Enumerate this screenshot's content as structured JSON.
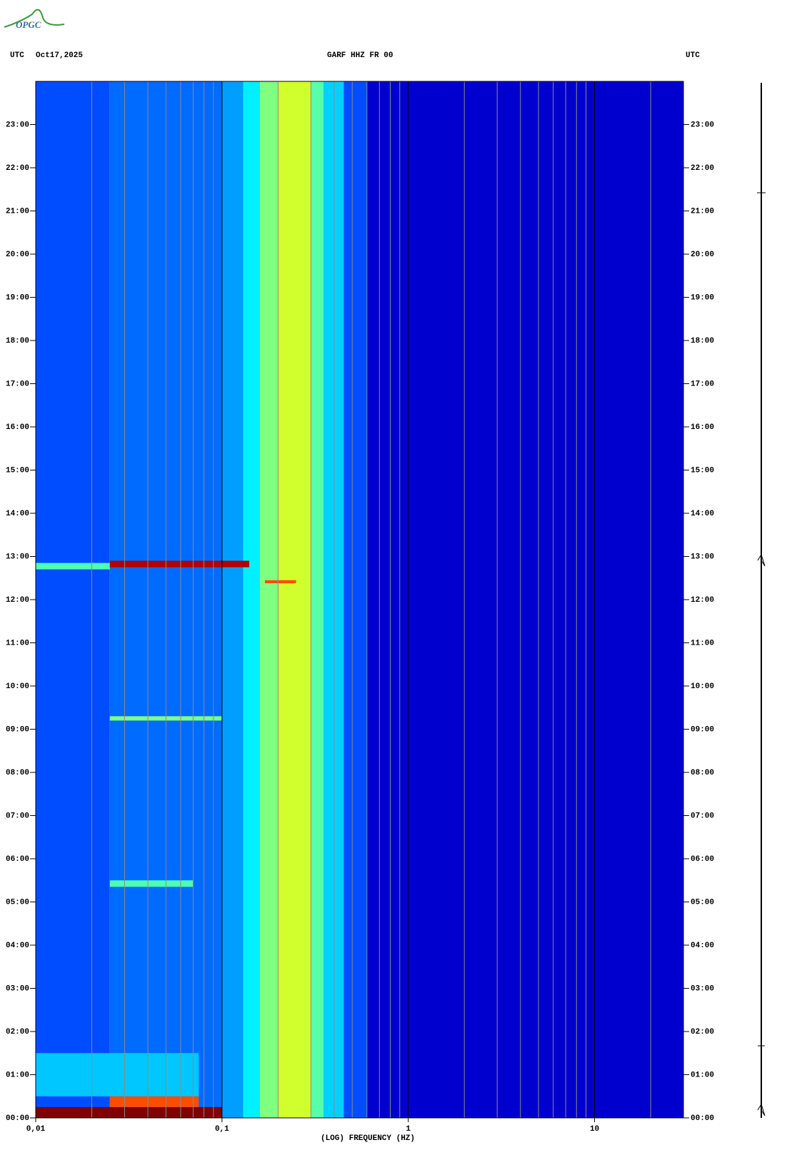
{
  "logo": "OPGC",
  "chart_data": {
    "type": "spectrogram",
    "header_left": "UTC",
    "date": "Oct17,2025",
    "title": "GARF HHZ FR 00",
    "header_right": "UTC",
    "xlabel": "(LOG) FREQUENCY (HZ)",
    "xscale": "log",
    "xlim": [
      0.01,
      30
    ],
    "ylim": [
      0,
      24
    ],
    "xticks": [
      {
        "value": 0.01,
        "label": "0,01"
      },
      {
        "value": 0.1,
        "label": "0,1"
      },
      {
        "value": 1,
        "label": "1"
      },
      {
        "value": 10,
        "label": "10"
      }
    ],
    "x_minor_grid": [
      0.02,
      0.03,
      0.04,
      0.05,
      0.06,
      0.07,
      0.08,
      0.09,
      0.2,
      0.3,
      0.4,
      0.5,
      0.6,
      0.7,
      0.8,
      0.9,
      2,
      3,
      4,
      5,
      6,
      7,
      8,
      9,
      20
    ],
    "yticks": [
      {
        "value": 0,
        "label": "00:00"
      },
      {
        "value": 1,
        "label": "01:00"
      },
      {
        "value": 2,
        "label": "02:00"
      },
      {
        "value": 3,
        "label": "03:00"
      },
      {
        "value": 4,
        "label": "04:00"
      },
      {
        "value": 5,
        "label": "05:00"
      },
      {
        "value": 6,
        "label": "06:00"
      },
      {
        "value": 7,
        "label": "07:00"
      },
      {
        "value": 8,
        "label": "08:00"
      },
      {
        "value": 9,
        "label": "09:00"
      },
      {
        "value": 10,
        "label": "10:00"
      },
      {
        "value": 11,
        "label": "11:00"
      },
      {
        "value": 12,
        "label": "12:00"
      },
      {
        "value": 13,
        "label": "13:00"
      },
      {
        "value": 14,
        "label": "14:00"
      },
      {
        "value": 15,
        "label": "15:00"
      },
      {
        "value": 16,
        "label": "16:00"
      },
      {
        "value": 17,
        "label": "17:00"
      },
      {
        "value": 18,
        "label": "18:00"
      },
      {
        "value": 19,
        "label": "19:00"
      },
      {
        "value": 20,
        "label": "20:00"
      },
      {
        "value": 21,
        "label": "21:00"
      },
      {
        "value": 22,
        "label": "22:00"
      },
      {
        "value": 23,
        "label": "23:00"
      }
    ],
    "freq_bins": [
      0.01,
      0.025,
      0.1,
      0.13,
      0.16,
      0.2,
      0.3,
      0.35,
      0.45,
      0.6,
      30
    ],
    "levels": [
      0.2,
      0.23,
      0.28,
      0.36,
      0.5,
      0.58,
      0.46,
      0.33,
      0.2,
      0.07
    ],
    "events": [
      {
        "t0": 12.7,
        "t1": 12.85,
        "f0": 0.01,
        "f1": 0.025,
        "level": 0.45
      },
      {
        "t0": 12.75,
        "t1": 12.9,
        "f0": 0.025,
        "f1": 0.14,
        "level": 0.95
      },
      {
        "t0": 0,
        "t1": 0.25,
        "f0": 0.01,
        "f1": 0.1,
        "level": 1
      },
      {
        "t0": 0.25,
        "t1": 0.5,
        "f0": 0.025,
        "f1": 0.075,
        "level": 0.8
      },
      {
        "t0": 0.5,
        "t1": 1.5,
        "f0": 0.01,
        "f1": 0.075,
        "level": 0.32
      },
      {
        "t0": 9.2,
        "t1": 9.3,
        "f0": 0.025,
        "f1": 0.1,
        "level": 0.5
      },
      {
        "t0": 5.35,
        "t1": 5.5,
        "f0": 0.025,
        "f1": 0.07,
        "level": 0.45
      },
      {
        "t0": 12.38,
        "t1": 12.45,
        "f0": 0.17,
        "f1": 0.25,
        "level": 0.8
      }
    ]
  }
}
